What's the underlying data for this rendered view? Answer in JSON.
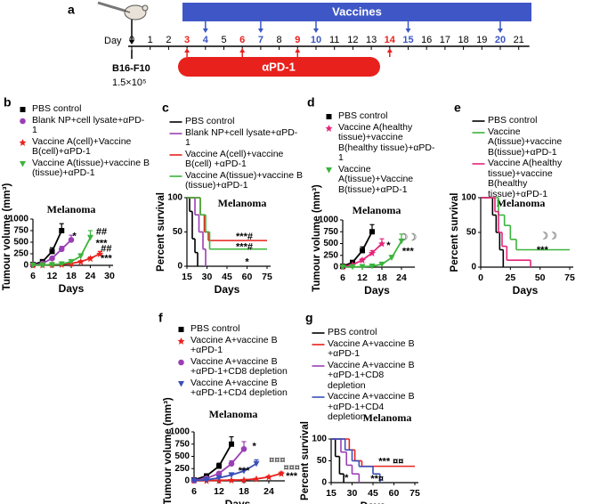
{
  "timeline": {
    "day_label": "Day",
    "days": [
      0,
      1,
      2,
      3,
      4,
      5,
      6,
      7,
      8,
      9,
      10,
      11,
      12,
      13,
      14,
      15,
      16,
      17,
      18,
      19,
      20,
      21
    ],
    "vaccine_label": "Vaccines",
    "vaccine_days": [
      4,
      7,
      10,
      15,
      20
    ],
    "antibody_label": "αPD-1",
    "antibody_days": [
      3,
      6,
      9,
      14
    ],
    "cell_line": "B16-F10",
    "cell_dose": "1.5×10⁵"
  },
  "panel_labels": [
    "a",
    "b",
    "c",
    "d",
    "e",
    "f",
    "g"
  ],
  "chart_data": [
    {
      "type": "line",
      "title": "Melanoma",
      "x_label": "Days",
      "y_label": "Tumour volume (mm³)",
      "xlim": [
        6,
        30
      ],
      "xticks": [
        6,
        12,
        18,
        24,
        30
      ],
      "ylim": [
        0,
        1000
      ],
      "yticks": [
        0,
        250,
        500,
        750,
        1000
      ],
      "series": [
        {
          "name": "PBS control",
          "color": "#000000",
          "marker": "square",
          "x": [
            6,
            9,
            12,
            15
          ],
          "values": [
            20,
            80,
            300,
            750
          ],
          "errors": [
            5,
            20,
            80,
            150
          ]
        },
        {
          "name": "Blank NP+cell lysate+αPD-1",
          "color": "#9b3fb5",
          "marker": "circle",
          "x": [
            6,
            9,
            12,
            15,
            18
          ],
          "values": [
            10,
            40,
            150,
            350,
            550
          ],
          "errors": [
            5,
            10,
            30,
            60,
            100
          ]
        },
        {
          "name": "Vaccine A(cell)+Vaccine B(cell)+αPD-1",
          "color": "#e8211d",
          "marker": "star",
          "x": [
            6,
            9,
            12,
            15,
            18,
            21,
            24,
            27
          ],
          "values": [
            5,
            10,
            15,
            20,
            40,
            80,
            150,
            250
          ],
          "errors": [
            2,
            3,
            5,
            5,
            10,
            20,
            30,
            50
          ]
        },
        {
          "name": "Vaccine A(tissue)+vaccine B (tissue)+αPD-1",
          "color": "#3cb43c",
          "marker": "triangle",
          "x": [
            6,
            9,
            12,
            15,
            18,
            21,
            24
          ],
          "values": [
            5,
            8,
            15,
            30,
            80,
            200,
            600
          ],
          "errors": [
            2,
            3,
            5,
            10,
            20,
            50,
            150
          ]
        }
      ],
      "annotations": [
        "*",
        "##",
        "***",
        "##",
        "***"
      ]
    },
    {
      "type": "step",
      "title": "Melanoma",
      "x_label": "Days",
      "y_label": "Percent survival",
      "xlim": [
        15,
        75
      ],
      "xticks": [
        15,
        30,
        45,
        60,
        75
      ],
      "ylim": [
        0,
        100
      ],
      "yticks": [
        0,
        50,
        100
      ],
      "series": [
        {
          "name": "PBS control",
          "color": "#000000",
          "x": [
            15,
            17,
            19,
            21,
            23
          ],
          "values": [
            100,
            80,
            40,
            20,
            0
          ]
        },
        {
          "name": "Blank NP+cell lysate+αPD-1",
          "color": "#9b3fb5",
          "x": [
            15,
            21,
            24,
            27,
            29
          ],
          "values": [
            100,
            75,
            50,
            25,
            0
          ]
        },
        {
          "name": "Vaccine A(cell)+vaccine B(cell) +αPD-1",
          "color": "#e8211d",
          "x": [
            15,
            25,
            28,
            31,
            75
          ],
          "values": [
            100,
            75,
            50,
            37.5,
            37.5
          ]
        },
        {
          "name": "Vaccine A(tissue)+vaccine B (tissue)+αPD-1",
          "color": "#3cb43c",
          "x": [
            15,
            25,
            29,
            32,
            75
          ],
          "values": [
            100,
            75,
            50,
            25,
            25
          ]
        }
      ],
      "annotations": [
        "***#",
        "***#",
        "*"
      ]
    },
    {
      "type": "line",
      "title": "Melanoma",
      "x_label": "Days",
      "y_label": "Tumour volume (mm³)",
      "xlim": [
        6,
        27
      ],
      "xticks": [
        6,
        12,
        18,
        24
      ],
      "ylim": [
        0,
        1000
      ],
      "yticks": [
        0,
        250,
        500,
        750,
        1000
      ],
      "series": [
        {
          "name": "PBS control",
          "color": "#000000",
          "marker": "square",
          "x": [
            6,
            9,
            12,
            15
          ],
          "values": [
            20,
            100,
            350,
            750
          ],
          "errors": [
            5,
            20,
            80,
            150
          ]
        },
        {
          "name": "Vaccine A(healthy tissue)+vaccine B(healthy tissue)+αPD-1",
          "color": "#e6257a",
          "marker": "star",
          "x": [
            6,
            9,
            12,
            15,
            18
          ],
          "values": [
            10,
            50,
            150,
            300,
            500
          ],
          "errors": [
            3,
            10,
            30,
            50,
            100
          ]
        },
        {
          "name": "Vaccine A(tissue)+Vaccine B(tissue)+αPD-1",
          "color": "#3cb43c",
          "marker": "triangle",
          "x": [
            6,
            9,
            12,
            15,
            18,
            21,
            24
          ],
          "values": [
            5,
            5,
            10,
            20,
            60,
            200,
            550
          ],
          "errors": [
            2,
            2,
            3,
            5,
            15,
            50,
            150
          ]
        }
      ],
      "annotations": [
        "*",
        "☽☽",
        "***"
      ]
    },
    {
      "type": "step",
      "title": "Melanoma",
      "x_label": "Days",
      "y_label": "Percent survival",
      "xlim": [
        0,
        75
      ],
      "xticks": [
        0,
        25,
        50,
        75
      ],
      "ylim": [
        0,
        100
      ],
      "yticks": [
        0,
        50,
        100
      ],
      "series": [
        {
          "name": "PBS control",
          "color": "#000000",
          "x": [
            0,
            10,
            13,
            16,
            19
          ],
          "values": [
            100,
            75,
            50,
            25,
            0
          ]
        },
        {
          "name": "Vaccine A(tissue)+vaccine B(tissue)+αPD-1",
          "color": "#3cb43c",
          "x": [
            0,
            15,
            20,
            25,
            30,
            75
          ],
          "values": [
            100,
            75,
            60,
            40,
            25,
            25
          ]
        },
        {
          "name": "Vaccine A(healthy tissue)+vaccine B(healthy tissue)+αPD-1",
          "color": "#e6257a",
          "x": [
            0,
            12,
            15,
            18,
            22,
            42
          ],
          "values": [
            100,
            80,
            50,
            30,
            10,
            0
          ]
        }
      ],
      "annotations": [
        "☽☽",
        "***"
      ]
    },
    {
      "type": "line",
      "title": "Melanoma",
      "x_label": "Days",
      "y_label": "Tumour volume (mm³)",
      "xlim": [
        6,
        27
      ],
      "xticks": [
        6,
        12,
        18,
        24
      ],
      "ylim": [
        0,
        1000
      ],
      "yticks": [
        0,
        250,
        500,
        750,
        1000
      ],
      "series": [
        {
          "name": "PBS control",
          "color": "#000000",
          "marker": "square",
          "x": [
            6,
            9,
            12,
            15
          ],
          "values": [
            20,
            100,
            300,
            750
          ],
          "errors": [
            5,
            20,
            60,
            150
          ]
        },
        {
          "name": "Vaccine A+vaccine B +αPD-1",
          "color": "#e8211d",
          "marker": "star",
          "x": [
            6,
            9,
            12,
            15,
            18,
            21,
            24,
            27
          ],
          "values": [
            5,
            5,
            10,
            15,
            20,
            40,
            80,
            150
          ],
          "errors": [
            2,
            2,
            3,
            3,
            5,
            10,
            20,
            30
          ]
        },
        {
          "name": "Vaccine A+vaccine B +αPD-1+CD8 depletion",
          "color": "#9b3fb5",
          "marker": "circle",
          "x": [
            6,
            9,
            12,
            15,
            18
          ],
          "values": [
            10,
            50,
            150,
            350,
            650
          ],
          "errors": [
            3,
            10,
            30,
            60,
            150
          ]
        },
        {
          "name": "Vaccine A+vaccine B +αPD-1+CD4 depletion",
          "color": "#3a4fb8",
          "marker": "triangle",
          "x": [
            6,
            9,
            12,
            15,
            18,
            21
          ],
          "values": [
            5,
            20,
            60,
            120,
            200,
            350
          ],
          "errors": [
            2,
            5,
            10,
            20,
            40,
            80
          ]
        }
      ],
      "annotations": [
        "*",
        "¤¤¤",
        "***",
        "¤¤¤",
        "***"
      ]
    },
    {
      "type": "step",
      "title": "Melanoma",
      "x_label": "Days",
      "y_label": "Percent survival",
      "xlim": [
        15,
        75
      ],
      "xticks": [
        15,
        30,
        45,
        60,
        75
      ],
      "ylim": [
        0,
        100
      ],
      "yticks": [
        0,
        50,
        100
      ],
      "series": [
        {
          "name": "PBS control",
          "color": "#000000",
          "x": [
            15,
            18,
            21,
            24
          ],
          "values": [
            100,
            60,
            20,
            0
          ]
        },
        {
          "name": "Vaccine A+vaccine B +αPD-1",
          "color": "#e8211d",
          "x": [
            15,
            28,
            32,
            37,
            75
          ],
          "values": [
            100,
            75,
            50,
            37.5,
            37.5
          ]
        },
        {
          "name": "Vaccine A+vaccine B +αPD-1+CD8 depletion",
          "color": "#9b3fb5",
          "x": [
            15,
            22,
            26,
            30,
            35
          ],
          "values": [
            100,
            70,
            40,
            20,
            0
          ]
        },
        {
          "name": "Vaccine A+vaccine B +αPD-1+CD4 depletion",
          "color": "#3a4fb8",
          "x": [
            15,
            25,
            30,
            35,
            45,
            50
          ],
          "values": [
            100,
            75,
            50,
            37,
            20,
            0
          ]
        }
      ],
      "annotations": [
        "*",
        "*** ¤¤",
        "**¤"
      ]
    }
  ]
}
